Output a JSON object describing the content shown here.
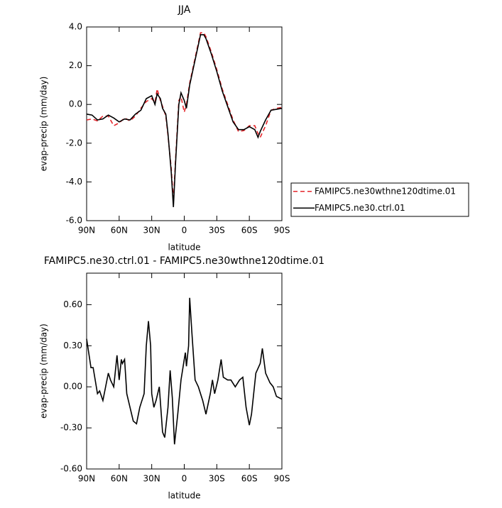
{
  "chart_data": [
    {
      "type": "line",
      "title": "JJA",
      "xlabel": "latitude",
      "ylabel": "evap-precip (mm/day)",
      "x": [
        90,
        85,
        80,
        75,
        70,
        65,
        60,
        55,
        50,
        45,
        40,
        35,
        30,
        27,
        25,
        22,
        20,
        17,
        15,
        12,
        10,
        8,
        5,
        3,
        0,
        -2,
        -5,
        -10,
        -15,
        -18,
        -20,
        -25,
        -30,
        -35,
        -40,
        -45,
        -50,
        -55,
        -60,
        -65,
        -68,
        -70,
        -75,
        -80,
        -85,
        -90
      ],
      "series": [
        {
          "name": "FAMIPC5.ne30wthne120dtime.01",
          "color": "#e4262b",
          "dashed": true,
          "values": [
            -0.8,
            -0.75,
            -0.85,
            -0.6,
            -0.6,
            -1.1,
            -0.95,
            -0.7,
            -0.85,
            -0.6,
            -0.2,
            0.15,
            0.3,
            0.1,
            0.8,
            0.2,
            -0.1,
            -0.6,
            -1.6,
            -3.3,
            -5.0,
            -2.8,
            0.2,
            0.4,
            -0.4,
            0.0,
            1.1,
            2.4,
            3.7,
            3.7,
            3.5,
            2.7,
            1.8,
            0.8,
            0.0,
            -0.8,
            -1.4,
            -1.35,
            -1.1,
            -1.1,
            -1.5,
            -1.7,
            -1.1,
            -0.3,
            -0.2,
            -0.15
          ]
        },
        {
          "name": "FAMIPC5.ne30.ctrl.01",
          "color": "#000000",
          "dashed": false,
          "values": [
            -0.5,
            -0.55,
            -0.8,
            -0.75,
            -0.55,
            -0.7,
            -0.9,
            -0.75,
            -0.8,
            -0.5,
            -0.3,
            0.3,
            0.45,
            0.0,
            0.55,
            0.3,
            -0.2,
            -0.5,
            -1.5,
            -3.5,
            -5.3,
            -3.0,
            0.0,
            0.6,
            0.2,
            -0.2,
            1.0,
            2.3,
            3.6,
            3.6,
            3.4,
            2.6,
            1.7,
            0.7,
            -0.1,
            -0.9,
            -1.3,
            -1.3,
            -1.15,
            -1.3,
            -1.7,
            -1.4,
            -0.8,
            -0.3,
            -0.25,
            -0.2
          ]
        }
      ],
      "xlim": [
        90,
        -90
      ],
      "xticks": [
        {
          "value": 90,
          "label": "90N"
        },
        {
          "value": 60,
          "label": "60N"
        },
        {
          "value": 30,
          "label": "30N"
        },
        0,
        {
          "value": -30,
          "label": "30S"
        },
        {
          "value": -60,
          "label": "60S"
        },
        {
          "value": -90,
          "label": "90S"
        }
      ],
      "ylim": [
        -6,
        4
      ],
      "yticks": [
        {
          "value": -6,
          "label": "-6.0"
        },
        {
          "value": -4,
          "label": "-4.0"
        },
        {
          "value": -2,
          "label": "-2.0"
        },
        {
          "value": 0,
          "label": "0.0"
        },
        {
          "value": 2,
          "label": "2.0"
        },
        {
          "value": 4,
          "label": "4.0"
        }
      ],
      "legend": "right"
    },
    {
      "type": "line",
      "title": "FAMIPC5.ne30.ctrl.01 - FAMIPC5.ne30wthne120dtime.01",
      "xlabel": "latitude",
      "ylabel": "evap-precip (mm/day)",
      "x": [
        90,
        86,
        84,
        80,
        78,
        75,
        70,
        68,
        65,
        62,
        60,
        58,
        57,
        55,
        53,
        50,
        47,
        44,
        41,
        37,
        35,
        33,
        31,
        30,
        28,
        26,
        23,
        20,
        18,
        15,
        13,
        11,
        9,
        6,
        3,
        1,
        -1,
        -2,
        -4,
        -5,
        -7,
        -10,
        -13,
        -17,
        -20,
        -24,
        -26,
        -28,
        -31,
        -34,
        -36,
        -40,
        -43,
        -47,
        -51,
        -54,
        -57,
        -60,
        -62,
        -66,
        -70,
        -72,
        -75,
        -79,
        -82,
        -85,
        -90
      ],
      "values": [
        0.35,
        0.14,
        0.14,
        -0.05,
        -0.03,
        -0.1,
        0.1,
        0.05,
        0.0,
        0.23,
        0.05,
        0.2,
        0.17,
        0.2,
        -0.05,
        -0.15,
        -0.25,
        -0.27,
        -0.15,
        -0.05,
        0.3,
        0.48,
        0.3,
        -0.05,
        -0.15,
        -0.1,
        0.0,
        -0.33,
        -0.37,
        -0.15,
        0.12,
        -0.08,
        -0.42,
        -0.2,
        0.05,
        0.15,
        0.25,
        0.15,
        0.3,
        0.65,
        0.4,
        0.05,
        0.0,
        -0.1,
        -0.2,
        -0.05,
        0.05,
        -0.05,
        0.05,
        0.2,
        0.07,
        0.05,
        0.05,
        0.0,
        0.05,
        0.07,
        -0.15,
        -0.28,
        -0.2,
        0.1,
        0.17,
        0.28,
        0.1,
        0.03,
        0.0,
        -0.07,
        -0.09
      ],
      "color": "#000000",
      "xlim": [
        90,
        -90
      ],
      "xticks": [
        {
          "value": 90,
          "label": "90N"
        },
        {
          "value": 60,
          "label": "60N"
        },
        {
          "value": 30,
          "label": "30N"
        },
        0,
        {
          "value": -30,
          "label": "30S"
        },
        {
          "value": -60,
          "label": "60S"
        },
        {
          "value": -90,
          "label": "90S"
        }
      ],
      "ylim": [
        -0.6,
        0.83
      ],
      "yticks": [
        {
          "value": -0.6,
          "label": "-0.60"
        },
        {
          "value": -0.3,
          "label": "-0.30"
        },
        {
          "value": 0,
          "label": "0.00"
        },
        {
          "value": 0.3,
          "label": "0.30"
        },
        {
          "value": 0.6,
          "label": "0.60"
        }
      ]
    }
  ]
}
